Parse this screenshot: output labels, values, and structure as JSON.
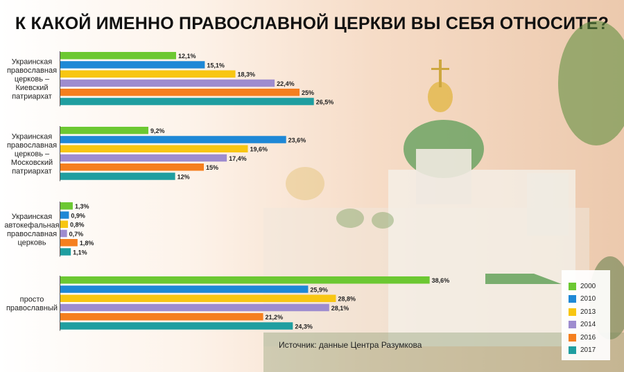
{
  "chart_data": {
    "type": "bar",
    "orientation": "horizontal",
    "title": "К КАКОЙ ИМЕННО ПРАВОСЛАВНОЙ ЦЕРКВИ ВЫ СЕБЯ ОТНОСИТЕ?",
    "source": "Источник: данные Центра Разумкова",
    "categories": [
      [
        "Украинская",
        "православная",
        "церковь –",
        "Киевский",
        "патриархат"
      ],
      [
        "Украинская",
        "православная",
        "церковь –",
        "Московский",
        "патриархат"
      ],
      [
        "Украинская",
        "автокефальная",
        "православная",
        "церковь"
      ],
      [
        "просто",
        "православный"
      ]
    ],
    "series": [
      {
        "name": "2000",
        "color": "#6cc832",
        "values": [
          12.1,
          9.2,
          1.3,
          38.6
        ],
        "labels": [
          "12,1%",
          "9,2%",
          "1,3%",
          "38,6%"
        ]
      },
      {
        "name": "2010",
        "color": "#1e88d6",
        "values": [
          15.1,
          23.6,
          0.9,
          25.9
        ],
        "labels": [
          "15,1%",
          "23,6%",
          "0,9%",
          "25,9%"
        ]
      },
      {
        "name": "2013",
        "color": "#f8c612",
        "values": [
          18.3,
          19.6,
          0.8,
          28.8
        ],
        "labels": [
          "18,3%",
          "19,6%",
          "0,8%",
          "28,8%"
        ]
      },
      {
        "name": "2014",
        "color": "#9e8ccf",
        "values": [
          22.4,
          17.4,
          0.7,
          28.1
        ],
        "labels": [
          "22,4%",
          "17,4%",
          "0,7%",
          "28,1%"
        ]
      },
      {
        "name": "2016",
        "color": "#f57f1f",
        "values": [
          25,
          15,
          1.8,
          21.2
        ],
        "labels": [
          "25%",
          "15%",
          "1,8%",
          "21,2%"
        ]
      },
      {
        "name": "2017",
        "color": "#1f9ea0",
        "values": [
          26.5,
          12,
          1.1,
          24.3
        ],
        "labels": [
          "26,5%",
          "12%",
          "1,1%",
          "24,3%"
        ]
      }
    ],
    "legend_position": "bottom-right",
    "grid": false
  }
}
